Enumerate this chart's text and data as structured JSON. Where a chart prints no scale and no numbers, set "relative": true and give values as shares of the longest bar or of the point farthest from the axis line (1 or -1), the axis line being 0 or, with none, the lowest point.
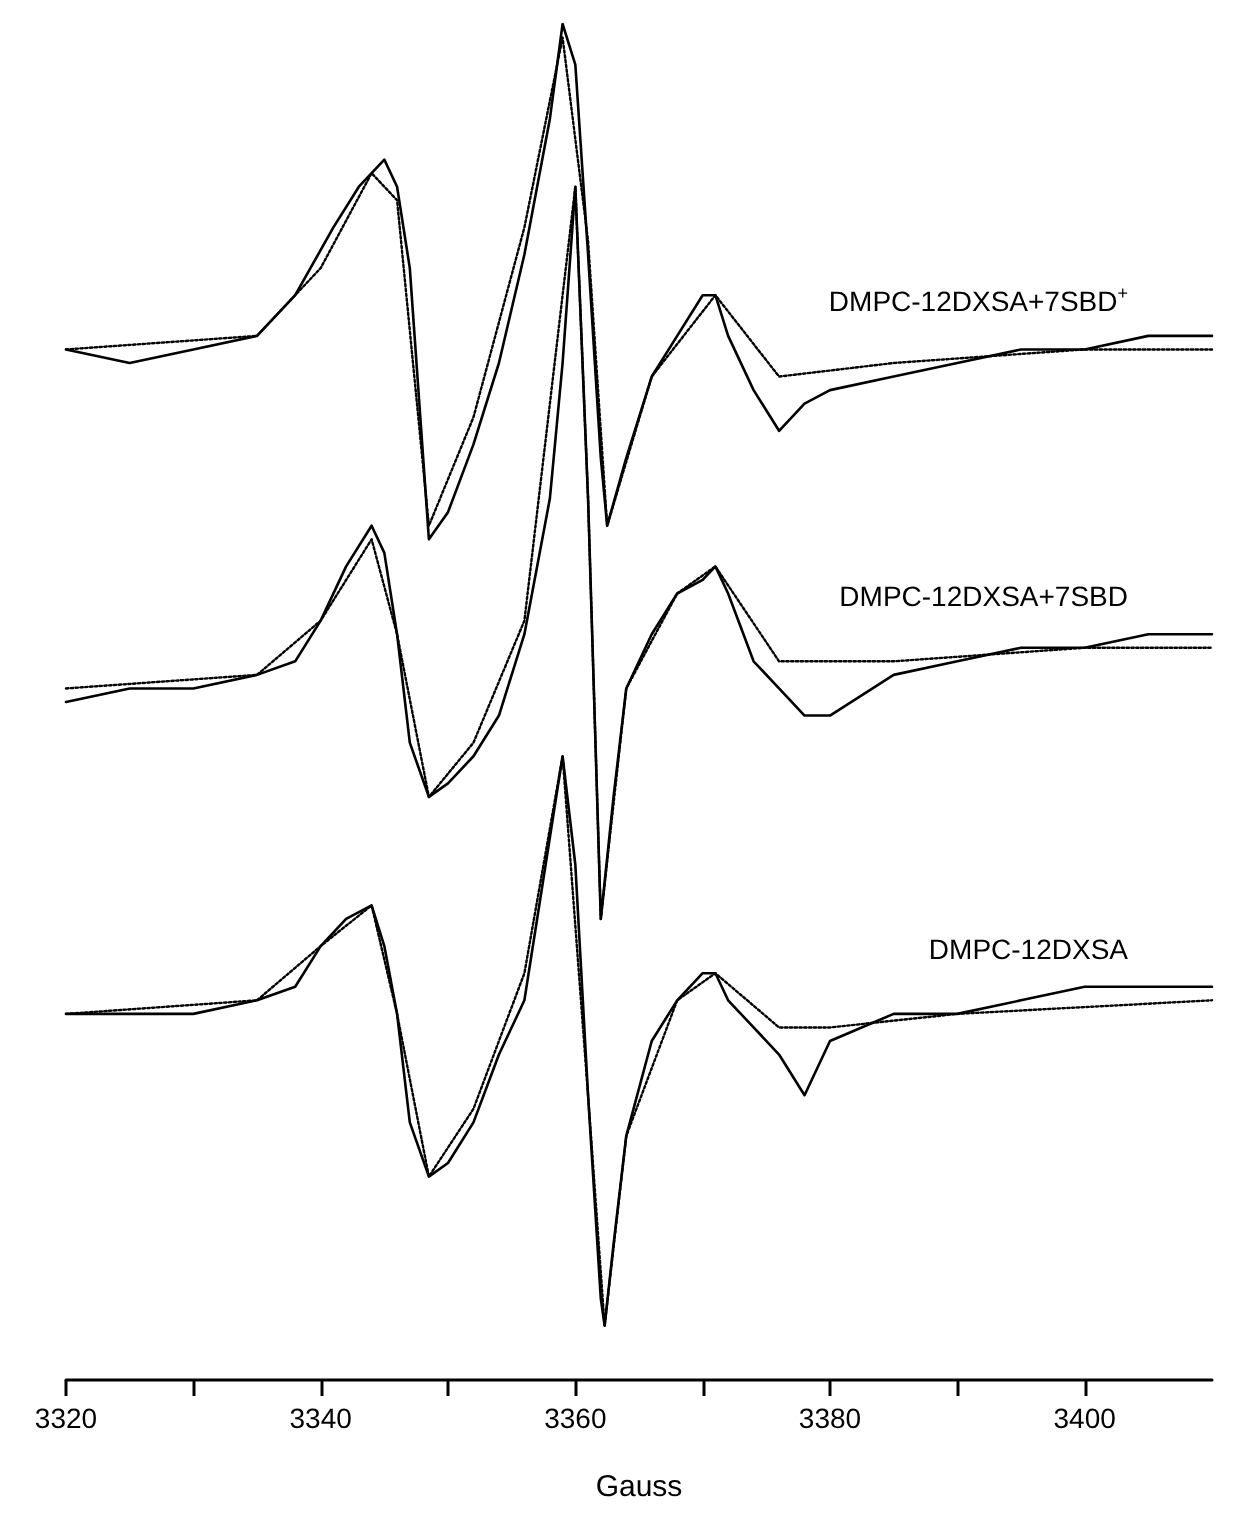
{
  "chart_data": {
    "type": "line",
    "relative": true,
    "xlabel": "Gauss",
    "xlim": [
      3320,
      3410
    ],
    "xticks": [
      3320,
      {
        "value": 3330,
        "label": null
      },
      3340,
      {
        "value": 3350,
        "label": null
      },
      3360,
      {
        "value": 3370,
        "label": null
      },
      3380,
      {
        "value": 3390,
        "label": null
      },
      3400
    ],
    "grid": false,
    "legend": false,
    "marker": "none",
    "series": [
      {
        "name": "DMPC-12DXSA+7SBD$^{+}$",
        "color": "#000000",
        "line_style": "solid",
        "x": [
          3320,
          3325,
          3330,
          3335,
          3338,
          3341,
          3343,
          3345,
          3346,
          3347,
          3348.5,
          3350,
          3352,
          3354,
          3356,
          3358,
          3359,
          3360,
          3361,
          3362,
          3362.5,
          3364,
          3366,
          3368,
          3370,
          3371,
          3372,
          3374,
          3376,
          3378,
          3380,
          3385,
          3390,
          3395,
          3400,
          3405,
          3410
        ],
        "values": [
          0.76,
          0.75,
          0.76,
          0.77,
          0.8,
          0.85,
          0.88,
          0.9,
          0.88,
          0.82,
          0.62,
          0.64,
          0.69,
          0.75,
          0.83,
          0.93,
          1.0,
          0.97,
          0.83,
          0.68,
          0.63,
          0.68,
          0.74,
          0.77,
          0.8,
          0.8,
          0.77,
          0.73,
          0.7,
          0.72,
          0.73,
          0.74,
          0.75,
          0.76,
          0.76,
          0.77,
          0.77
        ]
      },
      {
        "name": "DMPC-12DXSA+7SBD",
        "color": "#000000",
        "line_style": "solid",
        "x": [
          3320,
          3325,
          3330,
          3335,
          3338,
          3340,
          3342,
          3344,
          3345,
          3346,
          3347,
          3348.5,
          3350,
          3352,
          3354,
          3356,
          3358,
          3359,
          3360,
          3361,
          3362,
          3363,
          3364,
          3366,
          3368,
          3370,
          3371,
          3372,
          3374,
          3376,
          3378,
          3380,
          3385,
          3390,
          3395,
          3400,
          3405,
          3410
        ],
        "values": [
          0.5,
          0.51,
          0.51,
          0.52,
          0.53,
          0.56,
          0.6,
          0.63,
          0.61,
          0.55,
          0.47,
          0.43,
          0.44,
          0.46,
          0.49,
          0.55,
          0.65,
          0.75,
          0.88,
          0.65,
          0.34,
          0.43,
          0.51,
          0.55,
          0.58,
          0.59,
          0.6,
          0.58,
          0.53,
          0.51,
          0.49,
          0.49,
          0.52,
          0.53,
          0.54,
          0.54,
          0.55,
          0.55
        ]
      },
      {
        "name": "DMPC-12DXSA",
        "color": "#000000",
        "line_style": "solid",
        "x": [
          3320,
          3325,
          3330,
          3335,
          3338,
          3340,
          3342,
          3344,
          3345,
          3346,
          3347,
          3348.5,
          3350,
          3352,
          3354,
          3356,
          3358,
          3359,
          3360,
          3361,
          3362,
          3362.3,
          3363,
          3364,
          3366,
          3368,
          3370,
          3371,
          3372,
          3374,
          3376,
          3378,
          3380,
          3385,
          3390,
          3395,
          3400,
          3405,
          3410
        ],
        "values": [
          0.27,
          0.27,
          0.27,
          0.28,
          0.29,
          0.32,
          0.34,
          0.35,
          0.32,
          0.27,
          0.19,
          0.15,
          0.16,
          0.19,
          0.24,
          0.28,
          0.4,
          0.46,
          0.38,
          0.21,
          0.06,
          0.04,
          0.1,
          0.18,
          0.25,
          0.28,
          0.3,
          0.3,
          0.28,
          0.26,
          0.24,
          0.21,
          0.25,
          0.27,
          0.27,
          0.28,
          0.29,
          0.29,
          0.29
        ]
      },
      {
        "color": "#000000",
        "line_style": "dotted",
        "x": [
          3320,
          3335,
          3340,
          3344,
          3346,
          3348.5,
          3352,
          3356,
          3359,
          3361,
          3362.5,
          3366,
          3371,
          3376,
          3385,
          3400,
          3410
        ],
        "values": [
          0.76,
          0.77,
          0.82,
          0.89,
          0.87,
          0.63,
          0.71,
          0.85,
          0.99,
          0.84,
          0.63,
          0.74,
          0.8,
          0.74,
          0.75,
          0.76,
          0.76
        ]
      },
      {
        "color": "#000000",
        "line_style": "dotted",
        "x": [
          3320,
          3335,
          3340,
          3344,
          3346,
          3348.5,
          3352,
          3356,
          3360,
          3361,
          3362,
          3364,
          3368,
          3371,
          3376,
          3385,
          3400,
          3410
        ],
        "values": [
          0.51,
          0.52,
          0.56,
          0.62,
          0.55,
          0.43,
          0.47,
          0.56,
          0.88,
          0.65,
          0.34,
          0.51,
          0.58,
          0.6,
          0.53,
          0.53,
          0.54,
          0.54
        ]
      },
      {
        "color": "#000000",
        "line_style": "dotted",
        "x": [
          3320,
          3335,
          3340,
          3344,
          3346,
          3348.5,
          3352,
          3356,
          3359,
          3361,
          3362.3,
          3364,
          3368,
          3371,
          3376,
          3380,
          3390,
          3410
        ],
        "values": [
          0.27,
          0.28,
          0.32,
          0.35,
          0.27,
          0.15,
          0.2,
          0.3,
          0.46,
          0.21,
          0.04,
          0.18,
          0.28,
          0.3,
          0.26,
          0.26,
          0.27,
          0.28
        ]
      }
    ]
  }
}
